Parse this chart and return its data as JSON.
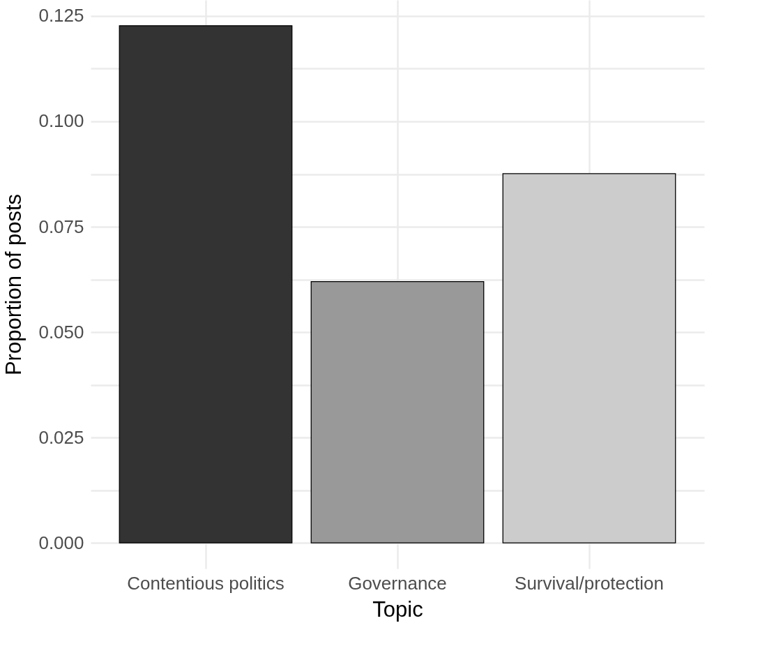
{
  "chart_data": {
    "type": "bar",
    "xlabel": "Topic",
    "ylabel": "Proportion of posts",
    "categories": [
      "Contentious politics",
      "Governance",
      "Survival/protection"
    ],
    "values": [
      0.1227,
      0.062,
      0.0876
    ],
    "colors": [
      "#333333",
      "#999999",
      "#cccccc"
    ],
    "ylim": [
      -0.0061,
      0.1288
    ],
    "yticks": [
      "0.000",
      {
        "value": 0.0125,
        "label": null
      },
      {
        "value": 0.025,
        "label": "0.025"
      },
      {
        "value": 0.0375,
        "label": null
      },
      {
        "value": 0.05,
        "label": "0.050"
      },
      {
        "value": 0.0625,
        "label": null
      },
      {
        "value": 0.075,
        "label": "0.075"
      },
      {
        "value": 0.0875,
        "label": null
      },
      {
        "value": 0.1,
        "label": "0.100"
      },
      {
        "value": 0.1125,
        "label": null
      },
      {
        "value": 0.125,
        "label": "0.125"
      }
    ],
    "grid": true
  }
}
